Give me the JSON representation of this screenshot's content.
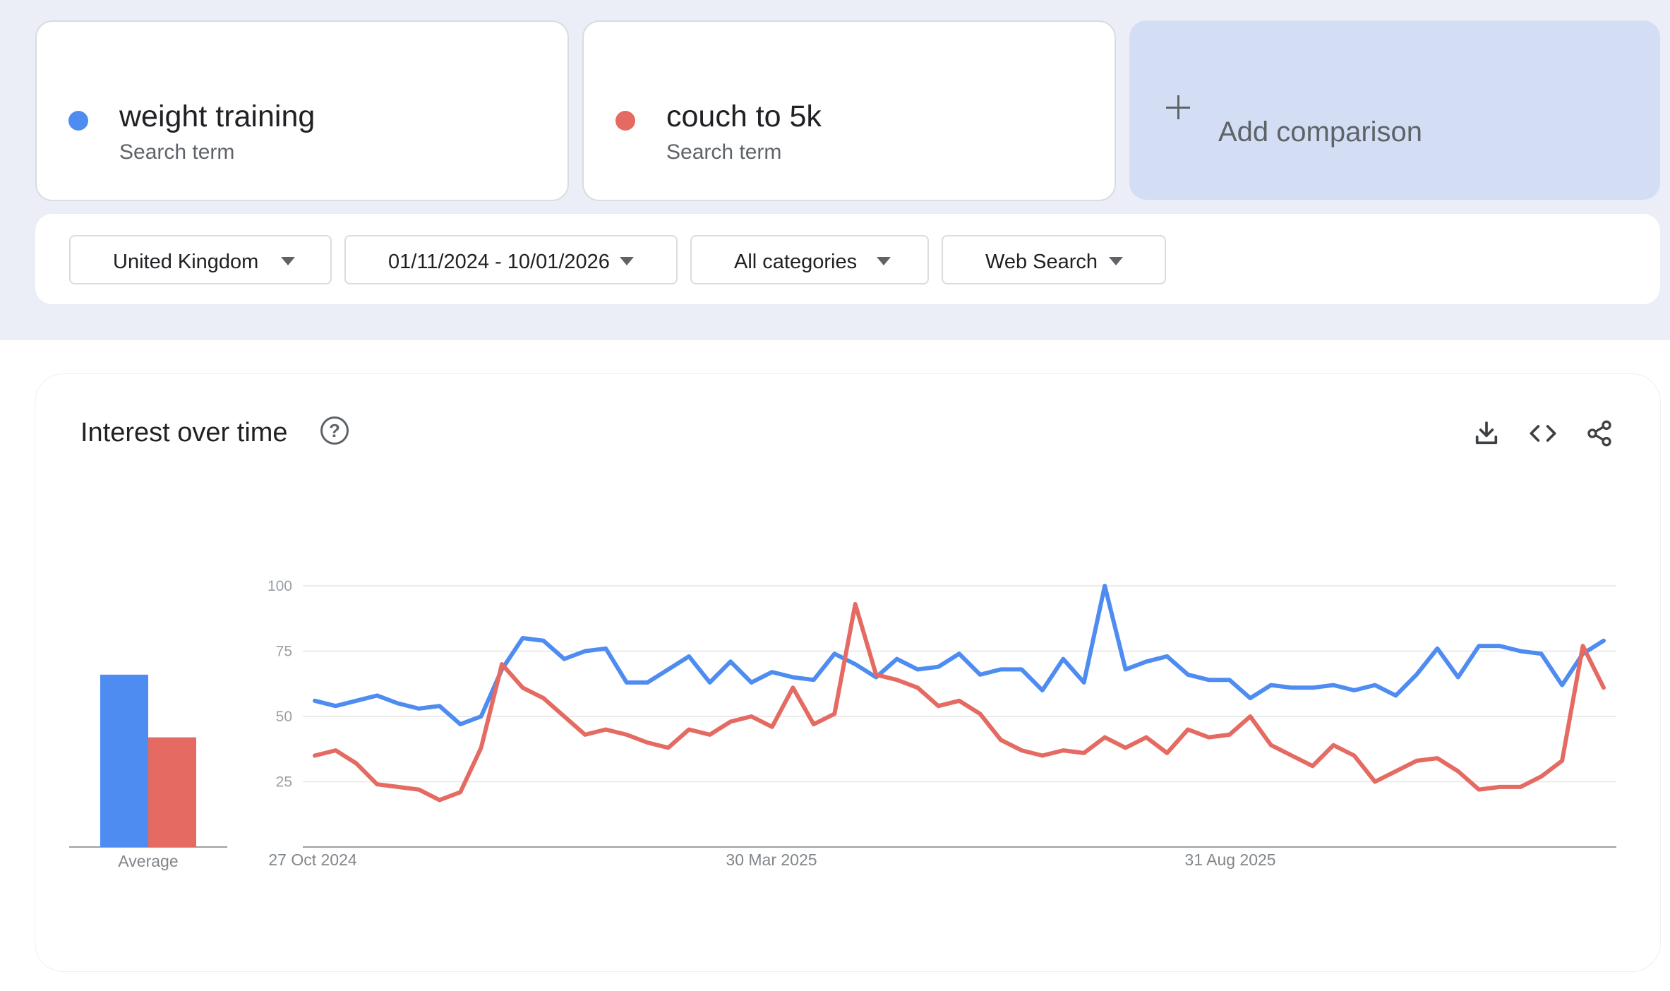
{
  "terms": [
    {
      "name": "weight training",
      "type": "Search term",
      "color": "#4e8cf1"
    },
    {
      "name": "couch to 5k",
      "type": "Search term",
      "color": "#e46a62"
    }
  ],
  "add_comparison": {
    "label": "Add comparison",
    "icon": "plus-icon"
  },
  "filters": {
    "region": "United Kingdom",
    "date_range": "01/11/2024 - 10/01/2026",
    "category": "All categories",
    "search_type": "Web Search"
  },
  "chart_panel": {
    "title": "Interest over time",
    "help_icon": "?",
    "icons": [
      "download-icon",
      "embed-code-icon",
      "share-icon"
    ]
  },
  "chart_data": {
    "type": "line",
    "title": "Interest over time",
    "ylim": [
      0,
      100
    ],
    "yticks": [
      25,
      50,
      75,
      100
    ],
    "x_tick_labels": [
      "27 Oct 2024",
      "30 Mar 2025",
      "31 Aug 2025"
    ],
    "grid": true,
    "average": {
      "label": "Average",
      "values": [
        {
          "name": "weight training",
          "value": 66
        },
        {
          "name": "couch to 5k",
          "value": 42
        }
      ]
    },
    "series": [
      {
        "name": "weight training",
        "color": "#4e8cf1",
        "values": [
          56,
          54,
          56,
          58,
          55,
          53,
          54,
          47,
          50,
          68,
          80,
          79,
          72,
          75,
          76,
          63,
          63,
          68,
          73,
          63,
          71,
          63,
          67,
          65,
          64,
          74,
          70,
          65,
          72,
          68,
          69,
          74,
          66,
          68,
          68,
          60,
          72,
          63,
          100,
          68,
          71,
          73,
          66,
          64,
          64,
          57,
          62,
          61,
          61,
          62,
          60,
          62,
          58,
          66,
          76,
          65,
          77,
          77,
          75,
          74,
          62,
          74,
          79
        ]
      },
      {
        "name": "couch to 5k",
        "color": "#e46a62",
        "values": [
          35,
          37,
          32,
          24,
          23,
          22,
          18,
          21,
          38,
          70,
          61,
          57,
          50,
          43,
          45,
          43,
          40,
          38,
          45,
          43,
          48,
          50,
          46,
          61,
          47,
          51,
          93,
          66,
          64,
          61,
          54,
          56,
          51,
          41,
          37,
          35,
          37,
          36,
          42,
          38,
          42,
          36,
          45,
          42,
          43,
          50,
          39,
          35,
          31,
          39,
          35,
          25,
          29,
          33,
          34,
          29,
          22,
          23,
          23,
          27,
          33,
          77,
          61
        ]
      }
    ]
  }
}
